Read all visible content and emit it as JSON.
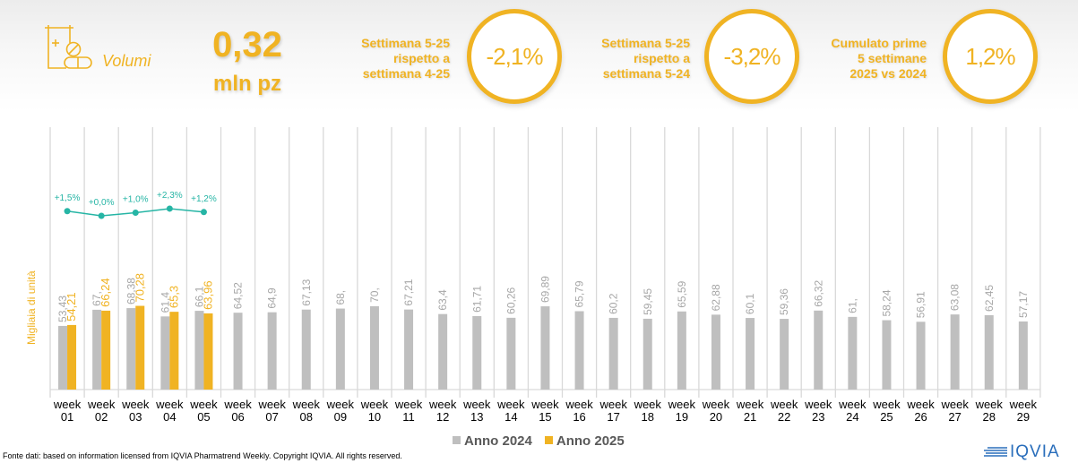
{
  "header": {
    "metric_label": "Volumi",
    "metric_icon": "pill-bottle-icon",
    "total_value": "0,32",
    "total_unit": "mln pz",
    "kpis": [
      {
        "label_lines": [
          "Settimana 5-25",
          "rispetto a",
          "settimana 4-25"
        ],
        "value": "-2,1%"
      },
      {
        "label_lines": [
          "Settimana 5-25",
          "rispetto a",
          "settimana 5-24"
        ],
        "value": "-3,2%"
      },
      {
        "label_lines": [
          "Cumulato prime",
          "5 settimane",
          "2025 vs 2024"
        ],
        "value": "1,2%"
      }
    ]
  },
  "colors": {
    "accent": "#f0b323",
    "series_2024": "#bfbfbf",
    "series_2025": "#f0b323",
    "growth_line": "#26b5a5",
    "grid": "#d9d9d9"
  },
  "chart_data": {
    "type": "bar",
    "title": "",
    "xlabel": "",
    "ylabel": "Migliaia di unità",
    "ylim": [
      0,
      110
    ],
    "grid": "vertical separators",
    "legend_position": "bottom-center",
    "categories": [
      "week 01",
      "week 02",
      "week 03",
      "week 04",
      "week 05",
      "week 06",
      "week 07",
      "week 08",
      "week 09",
      "week 10",
      "week 11",
      "week 12",
      "week 13",
      "week 14",
      "week 15",
      "week 16",
      "week 17",
      "week 18",
      "week 19",
      "week 20",
      "week 21",
      "week 22",
      "week 23",
      "week 24",
      "week 25",
      "week 26",
      "week 27",
      "week 28",
      "week 29"
    ],
    "series": [
      {
        "name": "Anno 2024",
        "values": [
          53.43,
          67,
          68.38,
          61.4,
          66.1,
          64.52,
          64.9,
          67.13,
          68,
          70,
          67.21,
          63.4,
          61.71,
          60.26,
          69.89,
          65.79,
          60.2,
          59.45,
          65.59,
          62.88,
          60.1,
          59.36,
          66.32,
          61,
          58.24,
          56.91,
          63.08,
          62.45,
          57.17
        ],
        "labels": [
          "53,43",
          "67,",
          "68,38",
          "61,4",
          "66,1",
          "64,52",
          "64,9",
          "67,13",
          "68,",
          "70,",
          "67,21",
          "63,4",
          "61,71",
          "60,26",
          "69,89",
          "65,79",
          "60,2",
          "59,45",
          "65,59",
          "62,88",
          "60,1",
          "59,36",
          "66,32",
          "61,",
          "58,24",
          "56,91",
          "63,08",
          "62,45",
          "57,17"
        ]
      },
      {
        "name": "Anno 2025",
        "values": [
          54.21,
          66.24,
          70.28,
          65.3,
          63.96
        ],
        "labels": [
          "54,21",
          "66,24",
          "70,28",
          "65,3",
          "63,96"
        ]
      }
    ],
    "growth_line": {
      "name": "Var % 2025 vs 2024",
      "values": [
        1.5,
        0.0,
        1.0,
        2.3,
        1.2
      ],
      "labels": [
        "+1,5%",
        "+0,0%",
        "+1,0%",
        "+2,3%",
        "+1,2%"
      ]
    }
  },
  "legend": {
    "items": [
      {
        "label": "Anno 2024"
      },
      {
        "label": "Anno 2025"
      }
    ]
  },
  "footer": {
    "source": "Fonte dati: based on information licensed from IQVIA Pharmatrend Weekly. Copyright IQVIA. All rights reserved."
  },
  "logo": {
    "text": "IQVIA"
  }
}
